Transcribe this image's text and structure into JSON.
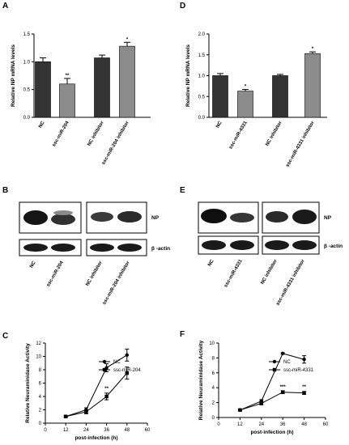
{
  "chart_data": [
    {
      "id": "A",
      "type": "bar",
      "panel_label": "A",
      "ylabel": "Relative NP mRNA levels",
      "ylim": [
        0,
        1.5
      ],
      "yticks": [
        "0.0",
        "0.5",
        "1.0",
        "1.5"
      ],
      "categories": [
        "NC",
        "ssc-miR-204",
        "NC inhibitor",
        "ssc-miR-204 inhibitor"
      ],
      "values": [
        1.0,
        0.6,
        1.07,
        1.28
      ],
      "errors": [
        0.07,
        0.1,
        0.05,
        0.07
      ],
      "colors": [
        "#333333",
        "#8c8c8c",
        "#333333",
        "#8c8c8c"
      ],
      "significance": [
        "",
        "**",
        "",
        "*"
      ]
    },
    {
      "id": "D",
      "type": "bar",
      "panel_label": "D",
      "ylabel": "Relative NP mRNA levels",
      "ylim": [
        0,
        2.0
      ],
      "yticks": [
        "0.0",
        "0.5",
        "1.0",
        "1.5",
        "2.0"
      ],
      "categories": [
        "NC",
        "ssc-miR-4331",
        "NC inhibitor",
        "ssc-miR-4331 inhibitor"
      ],
      "values": [
        1.0,
        0.63,
        1.0,
        1.53
      ],
      "errors": [
        0.05,
        0.04,
        0.03,
        0.04
      ],
      "colors": [
        "#333333",
        "#8c8c8c",
        "#333333",
        "#8c8c8c"
      ],
      "significance": [
        "",
        "*",
        "",
        "*"
      ]
    },
    {
      "id": "C",
      "type": "line",
      "panel_label": "C",
      "xlabel": "post-infection (h)",
      "ylabel": "Relative Neuraminidase Activity",
      "xlim": [
        0,
        60
      ],
      "xticks": [
        "0",
        "12",
        "24",
        "36",
        "48",
        "60"
      ],
      "ylim": [
        0,
        12
      ],
      "yticks": [
        "0",
        "2",
        "4",
        "6",
        "8",
        "10",
        "12"
      ],
      "x": [
        12,
        24,
        36,
        48
      ],
      "series": [
        {
          "name": "NC",
          "values": [
            1.0,
            2.0,
            8.3,
            10.2
          ],
          "errors": [
            0.1,
            0.3,
            0.6,
            0.9
          ],
          "marker": "circle"
        },
        {
          "name": "ssc-miR-204",
          "values": [
            1.0,
            1.7,
            4.0,
            7.5
          ],
          "errors": [
            0.1,
            0.3,
            0.5,
            0.9
          ],
          "marker": "square"
        }
      ],
      "annotations": [
        {
          "x": 36,
          "y": 5.0,
          "text": "**"
        }
      ]
    },
    {
      "id": "F",
      "type": "line",
      "panel_label": "F",
      "xlabel": "post-infection (h)",
      "ylabel": "Relative Neuraminidase Activity",
      "xlim": [
        0,
        60
      ],
      "xticks": [
        "0",
        "12",
        "24",
        "36",
        "48",
        "60"
      ],
      "ylim": [
        0,
        10
      ],
      "yticks": [
        "0",
        "2",
        "4",
        "6",
        "8",
        "10"
      ],
      "x": [
        12,
        24,
        36,
        48
      ],
      "series": [
        {
          "name": "NC",
          "values": [
            1.0,
            2.2,
            8.6,
            7.8
          ],
          "errors": [
            0.1,
            0.2,
            0.1,
            0.5
          ],
          "marker": "circle"
        },
        {
          "name": "ssc-miR-4331",
          "values": [
            1.0,
            1.9,
            3.4,
            3.3
          ],
          "errors": [
            0.1,
            0.2,
            0.2,
            0.2
          ],
          "marker": "square"
        }
      ],
      "annotations": [
        {
          "x": 36,
          "y": 3.9,
          "text": "***"
        },
        {
          "x": 48,
          "y": 3.9,
          "text": "**"
        }
      ]
    }
  ],
  "blots": [
    {
      "panel_label": "B",
      "band_labels": [
        "NP",
        "β -actin"
      ],
      "lanes": [
        "NC",
        "ssc-miR-204",
        "NC inhibitor",
        "ssc-miR-204 inhibitor"
      ]
    },
    {
      "panel_label": "E",
      "band_labels": [
        "NP",
        "β -actin"
      ],
      "lanes": [
        "NC",
        "ssc-miR-4331",
        "NC inhibitor",
        "ssc-miR-4331 inhibitor"
      ]
    }
  ]
}
